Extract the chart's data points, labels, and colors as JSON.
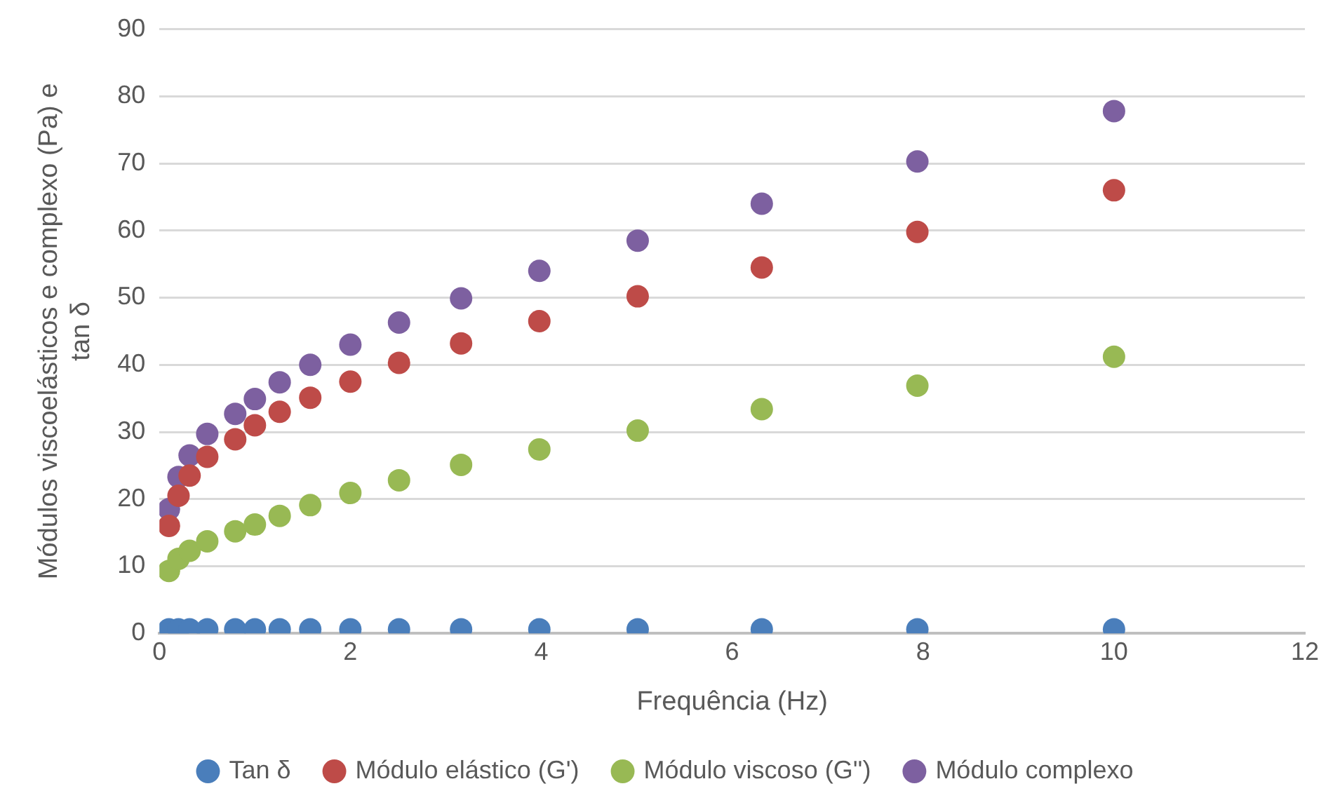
{
  "chart_data": {
    "type": "scatter",
    "xlabel": "Frequência (Hz)",
    "ylabel": "Módulos viscoelásticos e complexo (Pa) e tan δ",
    "x": [
      0.1,
      0.2,
      0.316,
      0.501,
      0.794,
      1,
      1.26,
      1.58,
      2,
      2.51,
      3.16,
      3.98,
      5.01,
      6.31,
      7.94,
      10
    ],
    "series": [
      {
        "name": "Tan δ",
        "color": "#4a7ebb",
        "values": [
          0.6,
          0.6,
          0.6,
          0.6,
          0.6,
          0.6,
          0.6,
          0.6,
          0.6,
          0.6,
          0.6,
          0.6,
          0.6,
          0.6,
          0.6,
          0.6
        ]
      },
      {
        "name": "Módulo elástico (G')",
        "color": "#be4b48",
        "values": [
          16,
          20.5,
          23.5,
          26.3,
          28.9,
          31,
          33,
          35.1,
          37.5,
          40.3,
          43.2,
          46.5,
          50.2,
          54.5,
          59.8,
          66
        ]
      },
      {
        "name": "Módulo viscoso (G'')",
        "color": "#98b954",
        "values": [
          9.3,
          11.1,
          12.3,
          13.7,
          15.2,
          16.2,
          17.5,
          19.1,
          20.9,
          22.8,
          25.1,
          27.4,
          30.2,
          33.4,
          36.9,
          41.2
        ]
      },
      {
        "name": "Módulo complexo",
        "color": "#7d60a0",
        "values": [
          18.5,
          23.3,
          26.5,
          29.7,
          32.7,
          34.9,
          37.4,
          40,
          43,
          46.3,
          49.9,
          54,
          58.5,
          64,
          70.3,
          77.8
        ]
      }
    ],
    "xlim": [
      0,
      12
    ],
    "xticks": [
      0,
      2,
      4,
      6,
      8,
      10,
      12
    ],
    "ylim": [
      0,
      90
    ],
    "yticks": [
      0,
      10,
      20,
      30,
      40,
      50,
      60,
      70,
      80,
      90
    ],
    "grid": "y",
    "legend": "bottom",
    "marker": "circle"
  }
}
